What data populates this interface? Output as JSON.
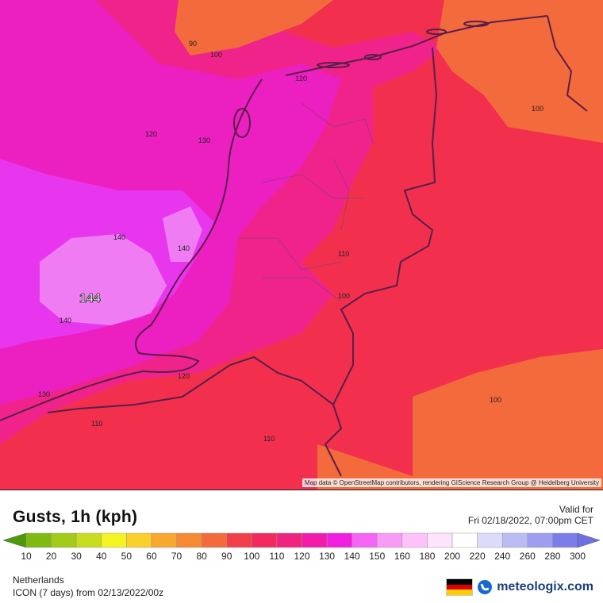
{
  "map": {
    "attribution": "Map data © OpenStreetMap contributors, rendering GIScience Research Group @ Heidelberg University",
    "max_label": "144",
    "contour_labels": [
      "90",
      "100",
      "120",
      "130",
      "120",
      "140",
      "140",
      "140",
      "130",
      "120",
      "110",
      "110",
      "110",
      "100",
      "100",
      "100"
    ]
  },
  "header": {
    "title": "Gusts, 1h (kph)",
    "valid_label": "Valid for",
    "valid_time": "Fri 02/18/2022, 07:00pm CET"
  },
  "legend": {
    "values": [
      "10",
      "20",
      "30",
      "40",
      "50",
      "60",
      "70",
      "80",
      "90",
      "100",
      "110",
      "120",
      "130",
      "140",
      "150",
      "160",
      "180",
      "200",
      "220",
      "240",
      "260",
      "280",
      "300"
    ],
    "colors": [
      "#56a40a",
      "#7fba12",
      "#a3cb1a",
      "#c9dd1f",
      "#f4f422",
      "#fad02a",
      "#f8a82f",
      "#f68a33",
      "#f36b3b",
      "#f2404a",
      "#f22a5e",
      "#f0237e",
      "#f21cab",
      "#f01ee0",
      "#f565f5",
      "#f79cf5",
      "#fbc3f9",
      "#fde3fb",
      "#ffffff",
      "#dcdcf8",
      "#bcbcf4",
      "#9e9ef0",
      "#7d7de9"
    ],
    "low_arrow_color": "#4c9a08",
    "high_arrow_color": "#6f6fe4"
  },
  "footer": {
    "region": "Netherlands",
    "model": "ICON (7 days) from  02/13/2022/00z",
    "brand": "meteologix.com"
  },
  "flag_colors": [
    "#000000",
    "#dd0000",
    "#ffce00"
  ]
}
